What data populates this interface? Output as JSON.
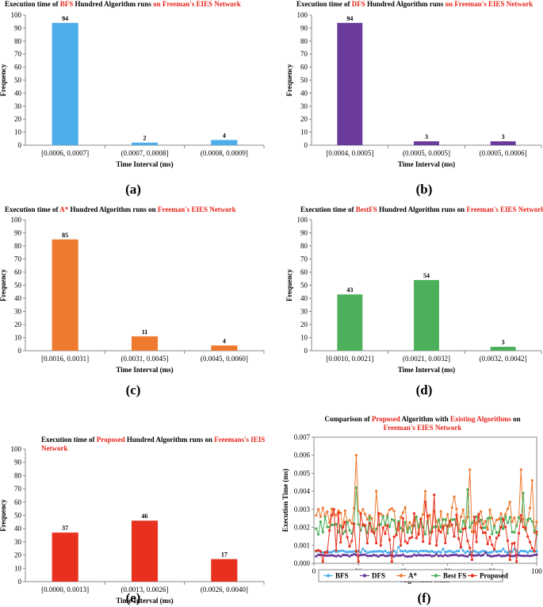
{
  "chart_data": [
    {
      "id": "a",
      "type": "bar",
      "panel_label": "(a)",
      "title": "Execution time of BFS Hundred Algorithm runs on Freeman's EIES Network",
      "title_runs": [
        {
          "text": "Execution time of ",
          "color": "#000000"
        },
        {
          "text": "BFS",
          "color": "#e8231a"
        },
        {
          "text": " Hundred Algorithm runs ",
          "color": "#000000"
        },
        {
          "text": "on Freeman's EIES Network",
          "color": "#e8231a"
        }
      ],
      "categories": [
        "[0.0006, 0.0007]",
        "(0.0007, 0.0008]",
        "(0.0008, 0.0009]"
      ],
      "values": [
        94,
        2,
        4
      ],
      "data_labels": [
        "94",
        "2",
        "4"
      ],
      "bar_color": "#4daeea",
      "xlabel": "Time Interval (ms)",
      "ylabel": "Frequency",
      "ylim": [
        0,
        100
      ],
      "yticks": [
        "0",
        "10",
        "20",
        "30",
        "40",
        "50",
        "60",
        "70",
        "80",
        "90",
        "100"
      ]
    },
    {
      "id": "b",
      "type": "bar",
      "panel_label": "(b)",
      "title": "Execution time of DFS Hundred Algorithm runs on Freeman's EIES Network",
      "title_runs": [
        {
          "text": "Execution time of ",
          "color": "#000000"
        },
        {
          "text": "DFS",
          "color": "#e8231a"
        },
        {
          "text": " Hundred Algorithm runs ",
          "color": "#000000"
        },
        {
          "text": "on Freeman's EIES Network",
          "color": "#e8231a"
        }
      ],
      "categories": [
        "[0.0004, 0.0005]",
        "(0.0005, 0.0005]",
        "(0.0005, 0.0006]"
      ],
      "values": [
        94,
        3,
        3
      ],
      "data_labels": [
        "94",
        "3",
        "3"
      ],
      "bar_color": "#6a3a9c",
      "xlabel": "Time Interval (ms)",
      "ylabel": "Frequency",
      "ylim": [
        0,
        100
      ],
      "yticks": [
        "0",
        "10",
        "20",
        "30",
        "40",
        "50",
        "60",
        "70",
        "80",
        "90",
        "100"
      ]
    },
    {
      "id": "c",
      "type": "bar",
      "panel_label": "(c)",
      "title": "Execution time of A* Hundred Algorithm runs on Freeman's EIES Network",
      "title_runs": [
        {
          "text": "Execution time of ",
          "color": "#000000"
        },
        {
          "text": "A*",
          "color": "#e8231a"
        },
        {
          "text": " Hundred Algorithm runs on ",
          "color": "#000000"
        },
        {
          "text": "Freeman's EIES Network",
          "color": "#e8231a"
        }
      ],
      "categories": [
        "[0.0016, 0.0031]",
        "(0.0031, 0.0045]",
        "(0.0045, 0.0060]"
      ],
      "values": [
        85,
        11,
        4
      ],
      "data_labels": [
        "85",
        "11",
        "4"
      ],
      "bar_color": "#ee7a30",
      "xlabel": "Time Interval (ms)",
      "ylabel": "Frequency",
      "ylim": [
        0,
        100
      ],
      "yticks": [
        "0",
        "10",
        "20",
        "30",
        "40",
        "50",
        "60",
        "70",
        "80",
        "90",
        "100"
      ]
    },
    {
      "id": "d",
      "type": "bar",
      "panel_label": "(d)",
      "title": "Execution time of BestFS Hundred Algorithm runs on Freeman's EIES Network",
      "title_runs": [
        {
          "text": "Execution time of ",
          "color": "#000000"
        },
        {
          "text": "BestFS",
          "color": "#e8231a"
        },
        {
          "text": " Hundred Algorithm runs on ",
          "color": "#000000"
        },
        {
          "text": "Freeman's EIES Network",
          "color": "#e8231a"
        }
      ],
      "categories": [
        "[0.0010, 0.0021]",
        "(0.0021, 0.0032]",
        "(0.0032, 0.0042]"
      ],
      "values": [
        43,
        54,
        3
      ],
      "data_labels": [
        "43",
        "54",
        "3"
      ],
      "bar_color": "#4caf5a",
      "xlabel": "Time Interval (ms)",
      "ylabel": "Frequency",
      "ylim": [
        0,
        100
      ],
      "yticks": [
        "0",
        "10",
        "20",
        "30",
        "40",
        "50",
        "60",
        "70",
        "80",
        "90",
        "100"
      ]
    },
    {
      "id": "e",
      "type": "bar",
      "panel_label": "(e)",
      "title": "Execution time of Proposed Hundred Algorithm runs on Freemans's IEIS Network",
      "title_lines": [
        [
          {
            "text": "Execution time of ",
            "color": "#000000"
          },
          {
            "text": "Proposed",
            "color": "#e8231a"
          },
          {
            "text": " Hundred Algorithm runs on ",
            "color": "#000000"
          },
          {
            "text": "Freemans's IEIS",
            "color": "#e8231a"
          }
        ],
        [
          {
            "text": "Network",
            "color": "#e8231a"
          }
        ]
      ],
      "categories": [
        "[0.0000, 0.0013]",
        "(0.0013, 0.0026]",
        "(0.0026, 0.0040]"
      ],
      "values": [
        37,
        46,
        17
      ],
      "data_labels": [
        "37",
        "46",
        "17"
      ],
      "bar_color": "#e8301f",
      "xlabel": "Time Interval (ms)",
      "ylabel": "Frequency",
      "ylim": [
        0,
        100
      ],
      "yticks": [
        "0",
        "10",
        "20",
        "30",
        "40",
        "50",
        "60",
        "70",
        "80",
        "90",
        "100"
      ]
    },
    {
      "id": "f",
      "type": "line",
      "panel_label": "(f)",
      "title": "Comparison of Proposed Algorithm with Existing Algorithms on Freeman's EIES Network",
      "title_lines": [
        [
          {
            "text": "Comparison of ",
            "color": "#000000"
          },
          {
            "text": "Proposed",
            "color": "#e8231a"
          },
          {
            "text": " Algorithm with ",
            "color": "#000000"
          },
          {
            "text": "Existing Algorithms",
            "color": "#e8231a"
          },
          {
            "text": " on",
            "color": "#000000"
          }
        ],
        [
          {
            "text": "Freeman's EIES Network",
            "color": "#e8231a"
          }
        ]
      ],
      "xlabel": "Algorithm Runs",
      "ylabel": "Execution Time (ms)",
      "xlim": [
        0,
        100
      ],
      "ylim": [
        0,
        0.007
      ],
      "xticks": [
        "0",
        "20",
        "40",
        "60",
        "80",
        "100"
      ],
      "yticks": [
        "0.000",
        "0.001",
        "0.002",
        "0.003",
        "0.004",
        "0.005",
        "0.006",
        "0.007"
      ],
      "series": [
        {
          "name": "BFS",
          "color": "#4daeea",
          "marker": "circle",
          "base": 0.00065,
          "spread": 6e-05,
          "seed": 11,
          "spikes": [
            [
              22,
              0.0008
            ],
            [
              38,
              0.0009
            ],
            [
              58,
              0.0008
            ],
            [
              66,
              0.0009
            ],
            [
              85,
              0.0008
            ],
            [
              90,
              0.0008
            ]
          ]
        },
        {
          "name": "DFS",
          "color": "#6a3a9c",
          "marker": "circle",
          "base": 0.00043,
          "spread": 5e-05,
          "seed": 23,
          "spikes": [
            [
              18,
              0.0005
            ],
            [
              55,
              0.0005
            ],
            [
              77,
              0.0006
            ]
          ]
        },
        {
          "name": "A*",
          "color": "#ee7a30",
          "marker": "circle",
          "base": 0.0024,
          "spread": 0.0007,
          "seed": 37,
          "spikes": [
            [
              2,
              0.003
            ],
            [
              19,
              0.006
            ],
            [
              28,
              0.004
            ],
            [
              41,
              0.0031
            ],
            [
              50,
              0.004
            ],
            [
              63,
              0.0037
            ],
            [
              70,
              0.0052
            ],
            [
              88,
              0.0034
            ],
            [
              93,
              0.0052
            ],
            [
              98,
              0.0046
            ]
          ]
        },
        {
          "name": "Best FS",
          "color": "#4caf5a",
          "marker": "circle",
          "base": 0.0021,
          "spread": 0.0005,
          "seed": 53,
          "spikes": [
            [
              19,
              0.0042
            ],
            [
              69,
              0.0041
            ],
            [
              94,
              0.0039
            ]
          ]
        },
        {
          "name": "Proposed",
          "color": "#e8301f",
          "marker": "circle",
          "base": 0.0017,
          "spread": 0.0011,
          "seed": 71,
          "spikes": [
            [
              4,
              0.0001
            ],
            [
              9,
              0.003
            ],
            [
              20,
              0.0001
            ],
            [
              35,
              0.0001
            ],
            [
              50,
              0.0034
            ],
            [
              54,
              0.0038
            ],
            [
              71,
              0.0002
            ],
            [
              88,
              0.0002
            ],
            [
              91,
              0.0001
            ]
          ]
        }
      ],
      "legend_position": "bottom"
    }
  ]
}
